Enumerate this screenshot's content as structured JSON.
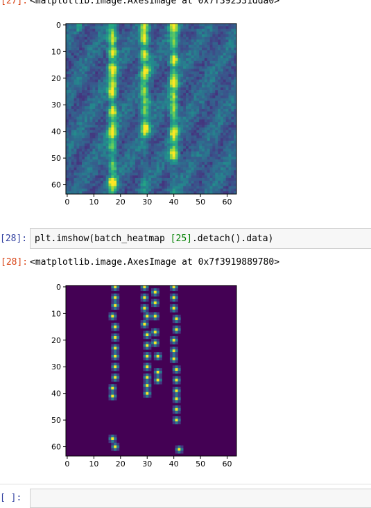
{
  "cells": [
    {
      "output_prompt": "[27]:",
      "output_text": "<matplotlib.image.AxesImage at 0x7f392531dda0>",
      "plot": {
        "xticks": [
          "0",
          "10",
          "20",
          "30",
          "40",
          "50",
          "60"
        ],
        "yticks": [
          "0",
          "10",
          "20",
          "30",
          "40",
          "50",
          "60"
        ],
        "colormap": [
          "#440154",
          "#472d7b",
          "#3b528b",
          "#2c728e",
          "#21918c",
          "#28ae80",
          "#5ec962",
          "#addc30",
          "#fde725"
        ]
      }
    },
    {
      "input_prompt": "[28]:",
      "code_before": "plt.imshow(batch_heatmap ",
      "code_index": "[25]",
      "code_after": ".detach().data)",
      "output_prompt": "[28]:",
      "output_text": "<matplotlib.image.AxesImage at 0x7f3919889780>",
      "plot": {
        "xticks": [
          "0",
          "10",
          "20",
          "30",
          "40",
          "50",
          "60"
        ],
        "yticks": [
          "0",
          "10",
          "20",
          "30",
          "40",
          "50",
          "60"
        ],
        "background": "#440154",
        "colormap": [
          "#440154",
          "#472d7b",
          "#3b528b",
          "#2c728e",
          "#21918c",
          "#28ae80",
          "#5ec962",
          "#addc30",
          "#fde725"
        ]
      }
    },
    {
      "input_prompt": "[ ]:"
    }
  ],
  "chart_data": [
    {
      "type": "heatmap",
      "x_range": [
        0,
        63
      ],
      "y_range": [
        0,
        63
      ],
      "xticks": [
        0,
        10,
        20,
        30,
        40,
        50,
        60
      ],
      "yticks": [
        0,
        10,
        20,
        30,
        40,
        50,
        60
      ],
      "y_inverted": true,
      "colormap": "viridis",
      "hot_columns": [
        17,
        29,
        40
      ],
      "hot_spots": [
        [
          17,
          6
        ],
        [
          17,
          10
        ],
        [
          17,
          16
        ],
        [
          17,
          22
        ],
        [
          17,
          26
        ],
        [
          17,
          33
        ],
        [
          17,
          41
        ],
        [
          17,
          59
        ],
        [
          29,
          1
        ],
        [
          29,
          6
        ],
        [
          29,
          11
        ],
        [
          30,
          17
        ],
        [
          30,
          29
        ],
        [
          30,
          39
        ],
        [
          40,
          1
        ],
        [
          40,
          13
        ],
        [
          40,
          22
        ],
        [
          40,
          31
        ],
        [
          40,
          40
        ],
        [
          40,
          49
        ]
      ]
    },
    {
      "type": "heatmap",
      "x_range": [
        0,
        63
      ],
      "y_range": [
        0,
        63
      ],
      "xticks": [
        0,
        10,
        20,
        30,
        40,
        50,
        60
      ],
      "yticks": [
        0,
        10,
        20,
        30,
        40,
        50,
        60
      ],
      "y_inverted": true,
      "colormap": "viridis",
      "peaks": [
        [
          18,
          0
        ],
        [
          18,
          4
        ],
        [
          18,
          7
        ],
        [
          17,
          11
        ],
        [
          18,
          15
        ],
        [
          18,
          19
        ],
        [
          18,
          23
        ],
        [
          18,
          26
        ],
        [
          18,
          30
        ],
        [
          18,
          34
        ],
        [
          17,
          38
        ],
        [
          17,
          41
        ],
        [
          17,
          57
        ],
        [
          18,
          60
        ],
        [
          29,
          0
        ],
        [
          29,
          4
        ],
        [
          29,
          8
        ],
        [
          30,
          11
        ],
        [
          29,
          14
        ],
        [
          30,
          18
        ],
        [
          30,
          22
        ],
        [
          30,
          26
        ],
        [
          30,
          30
        ],
        [
          30,
          34
        ],
        [
          30,
          37
        ],
        [
          30,
          40
        ],
        [
          33,
          2
        ],
        [
          33,
          6
        ],
        [
          33,
          11
        ],
        [
          33,
          17
        ],
        [
          33,
          21
        ],
        [
          34,
          26
        ],
        [
          34,
          32
        ],
        [
          34,
          35
        ],
        [
          40,
          0
        ],
        [
          40,
          4
        ],
        [
          40,
          8
        ],
        [
          41,
          12
        ],
        [
          41,
          16
        ],
        [
          40,
          20
        ],
        [
          40,
          24
        ],
        [
          40,
          27
        ],
        [
          41,
          31
        ],
        [
          41,
          35
        ],
        [
          41,
          39
        ],
        [
          41,
          42
        ],
        [
          41,
          46
        ],
        [
          41,
          50
        ],
        [
          42,
          61
        ]
      ]
    }
  ]
}
